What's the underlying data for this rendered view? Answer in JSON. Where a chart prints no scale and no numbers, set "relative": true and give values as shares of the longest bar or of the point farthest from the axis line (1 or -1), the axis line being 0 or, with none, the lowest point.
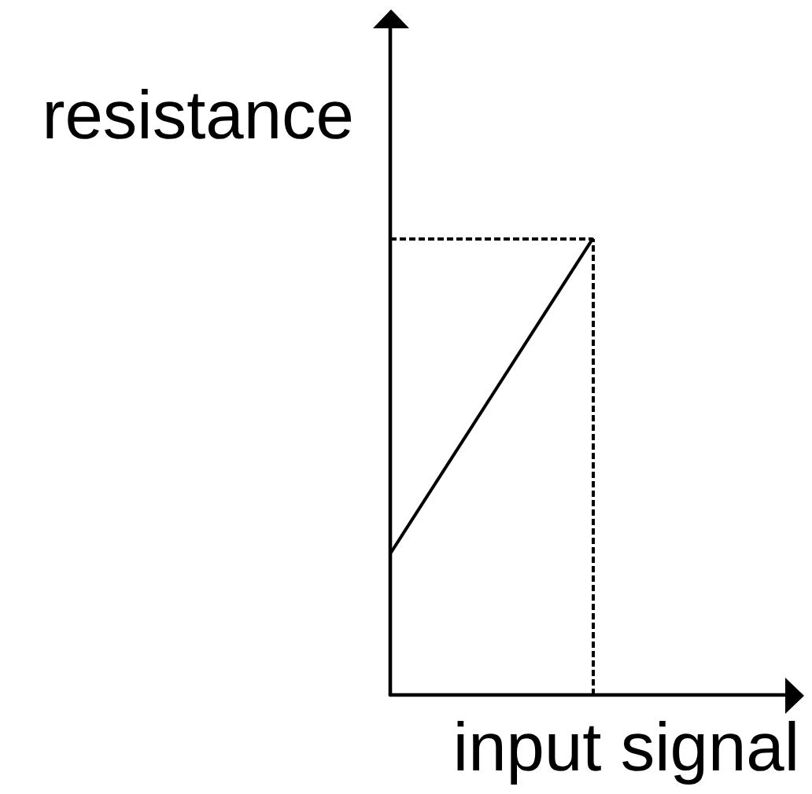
{
  "chart_data": {
    "type": "line",
    "xlabel": "input signal",
    "ylabel": "resistance",
    "categories": [
      null,
      null,
      null
    ],
    "values": [
      0.31,
      1,
      null
    ],
    "color": "#000000",
    "relative": true,
    "ref_lines": [
      {
        "axis": "y",
        "value": 1,
        "line_style": "dashed",
        "color": "#000000"
      }
    ]
  }
}
